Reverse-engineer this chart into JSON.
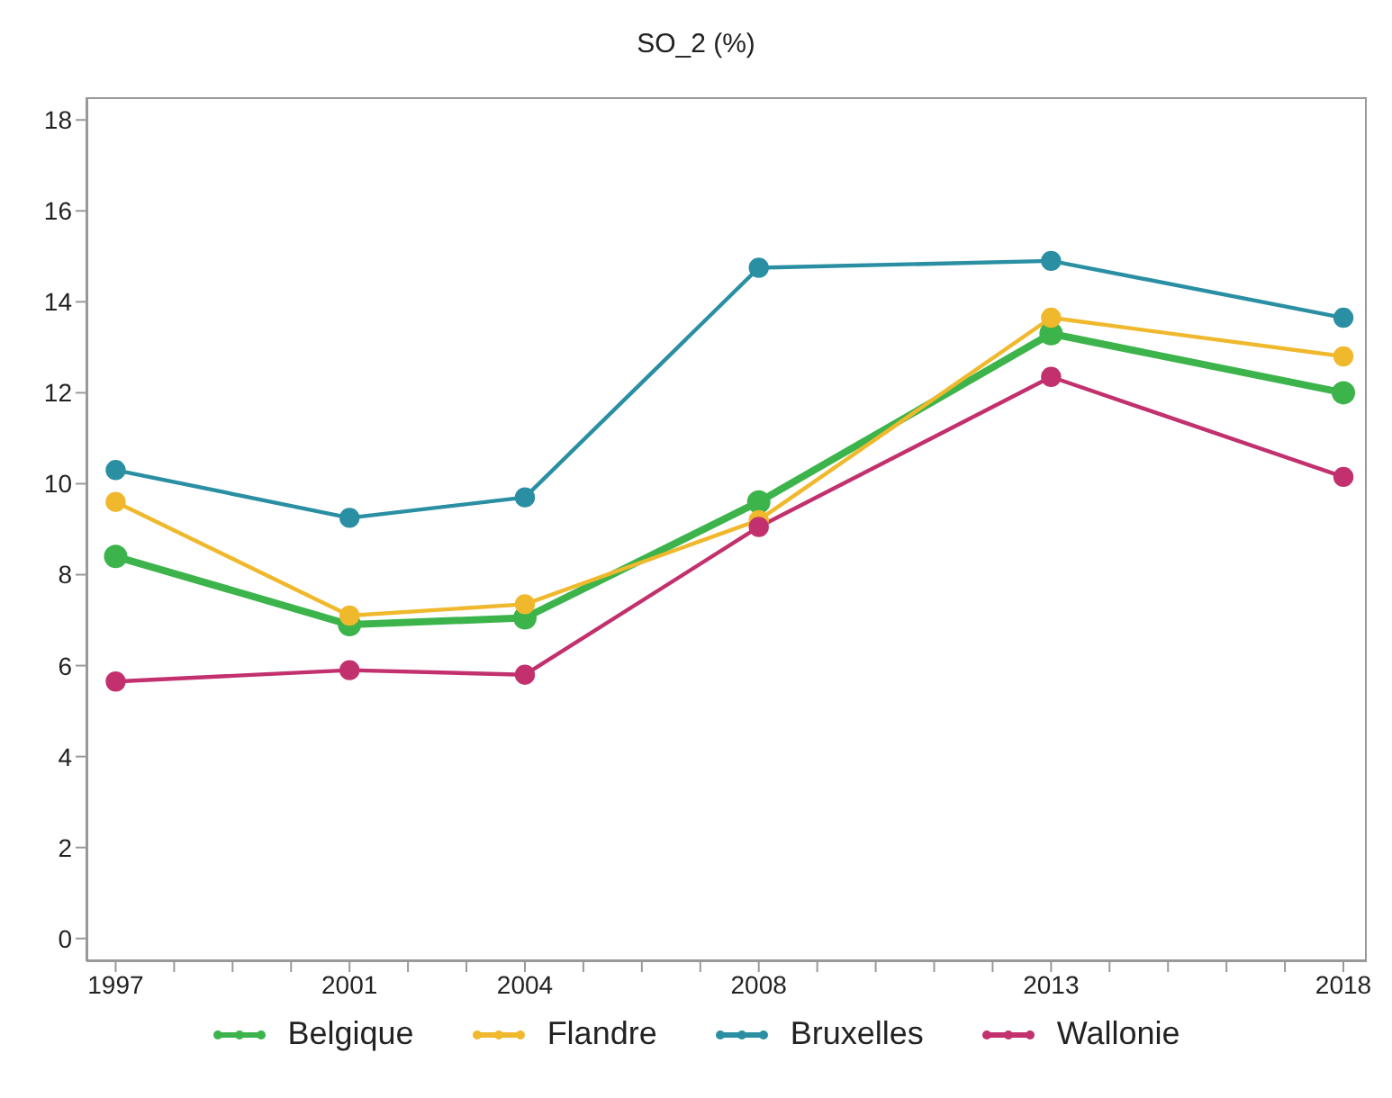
{
  "chart_data": {
    "type": "line",
    "title": "SO_2  (%)",
    "x": [
      1997,
      2001,
      2004,
      2008,
      2013,
      2018
    ],
    "series": [
      {
        "name": "Belgique",
        "color": "#3cb44b",
        "values": [
          8.4,
          6.9,
          7.05,
          9.6,
          13.3,
          12.0
        ]
      },
      {
        "name": "Flandre",
        "color": "#f0b82c",
        "values": [
          9.6,
          7.1,
          7.35,
          9.2,
          13.65,
          12.8
        ]
      },
      {
        "name": "Bruxelles",
        "color": "#2a8fa3",
        "values": [
          10.3,
          9.25,
          9.7,
          14.75,
          14.9,
          13.65
        ]
      },
      {
        "name": "Wallonie",
        "color": "#c2306e",
        "values": [
          5.65,
          5.9,
          5.8,
          9.05,
          12.35,
          10.15
        ]
      }
    ],
    "xlim": [
      1996.5,
      2018.4
    ],
    "xticks": [
      1997,
      {
        "value": 1998,
        "label": null
      },
      {
        "value": 1999,
        "label": null
      },
      {
        "value": 2000,
        "label": null
      },
      2001,
      {
        "value": 2002,
        "label": null
      },
      {
        "value": 2003,
        "label": null
      },
      2004,
      {
        "value": 2005,
        "label": null
      },
      {
        "value": 2006,
        "label": null
      },
      {
        "value": 2007,
        "label": null
      },
      2008,
      {
        "value": 2009,
        "label": null
      },
      {
        "value": 2010,
        "label": null
      },
      {
        "value": 2011,
        "label": null
      },
      {
        "value": 2012,
        "label": null
      },
      2013,
      {
        "value": 2014,
        "label": null
      },
      {
        "value": 2015,
        "label": null
      },
      {
        "value": 2016,
        "label": null
      },
      {
        "value": 2017,
        "label": null
      },
      2018
    ],
    "ylim": [
      -0.5,
      18.5
    ],
    "yticks": [
      0,
      2,
      4,
      6,
      8,
      10,
      12,
      14,
      16,
      18
    ],
    "grid": false,
    "legend": "bottom",
    "marker": "circle",
    "line_style": "solid"
  }
}
